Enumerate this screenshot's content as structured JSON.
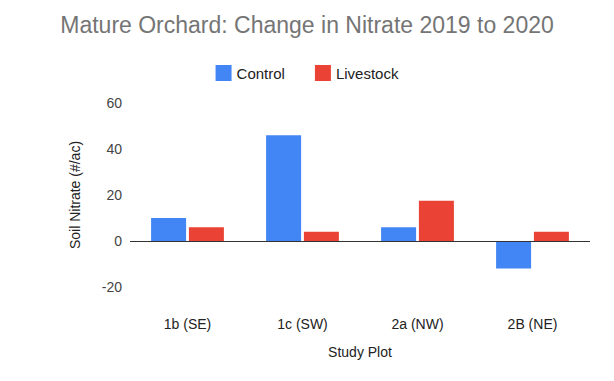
{
  "chart_data": {
    "type": "bar",
    "title": "Mature Orchard: Change in Nitrate 2019 to 2020",
    "x_label": "Study Plot",
    "y_label": "Soil Nitrate (#/ac)",
    "categories": [
      "1b (SE)",
      "1c (SW)",
      "2a (NW)",
      "2B (NE)"
    ],
    "series": [
      {
        "name": "Control",
        "color": "#4285f4",
        "values": [
          10,
          46,
          6,
          -12
        ]
      },
      {
        "name": "Livestock",
        "color": "#ea4335",
        "values": [
          6,
          4,
          17.5,
          4
        ]
      }
    ],
    "ylim": [
      -20,
      60
    ],
    "yticks": [
      -20,
      0,
      20,
      40,
      60
    ],
    "grid": false,
    "legend": "top"
  }
}
